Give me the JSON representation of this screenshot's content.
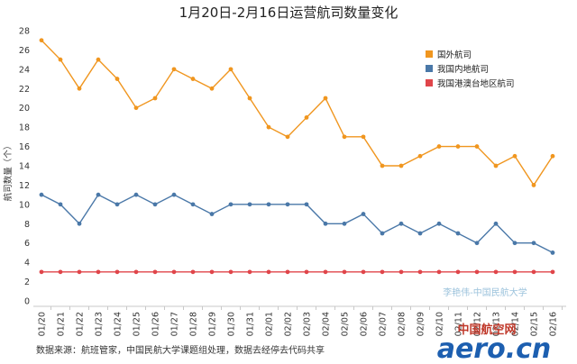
{
  "chart_data": {
    "type": "line",
    "title": "1月20日-2月16日运营航司数量变化",
    "ylabel": "航司数量（个）",
    "xlabel": "",
    "ylim": [
      0,
      28
    ],
    "yticks": [
      0,
      2,
      4,
      6,
      8,
      10,
      12,
      14,
      16,
      18,
      20,
      22,
      24,
      26,
      28
    ],
    "grid": false,
    "legend_position": "top-right",
    "categories": [
      "01/20",
      "01/21",
      "01/22",
      "01/23",
      "01/24",
      "01/25",
      "01/26",
      "01/27",
      "01/28",
      "01/29",
      "01/30",
      "01/31",
      "02/01",
      "02/02",
      "02/03",
      "02/04",
      "02/05",
      "02/06",
      "02/07",
      "02/08",
      "02/09",
      "02/10",
      "02/11",
      "02/12",
      "02/13",
      "02/14",
      "02/15",
      "02/16"
    ],
    "series": [
      {
        "name": "国外航司",
        "color": "#f0961f",
        "values": [
          27,
          25,
          22,
          25,
          23,
          20,
          21,
          24,
          23,
          22,
          24,
          21,
          18,
          17,
          19,
          21,
          17,
          17,
          14,
          14,
          15,
          16,
          16,
          16,
          14,
          15,
          12,
          15
        ]
      },
      {
        "name": "我国内地航司",
        "color": "#4a78a8",
        "values": [
          11,
          10,
          8,
          11,
          10,
          11,
          10,
          11,
          10,
          9,
          10,
          10,
          10,
          10,
          10,
          8,
          8,
          9,
          7,
          8,
          7,
          8,
          7,
          6,
          8,
          6,
          6,
          5
        ]
      },
      {
        "name": "我国港澳台地区航司",
        "color": "#e0454a",
        "values": [
          3,
          3,
          3,
          3,
          3,
          3,
          3,
          3,
          3,
          3,
          3,
          3,
          3,
          3,
          3,
          3,
          3,
          3,
          3,
          3,
          3,
          3,
          3,
          3,
          3,
          3,
          3,
          3
        ]
      }
    ]
  },
  "footer": {
    "source": "数据来源：航班管家，中国民航大学课题组处理，数据去经停去代码共享",
    "watermark": "李艳伟-中国民航大学"
  },
  "logo": {
    "top": "中国航空网",
    "main": "aero.cn"
  }
}
